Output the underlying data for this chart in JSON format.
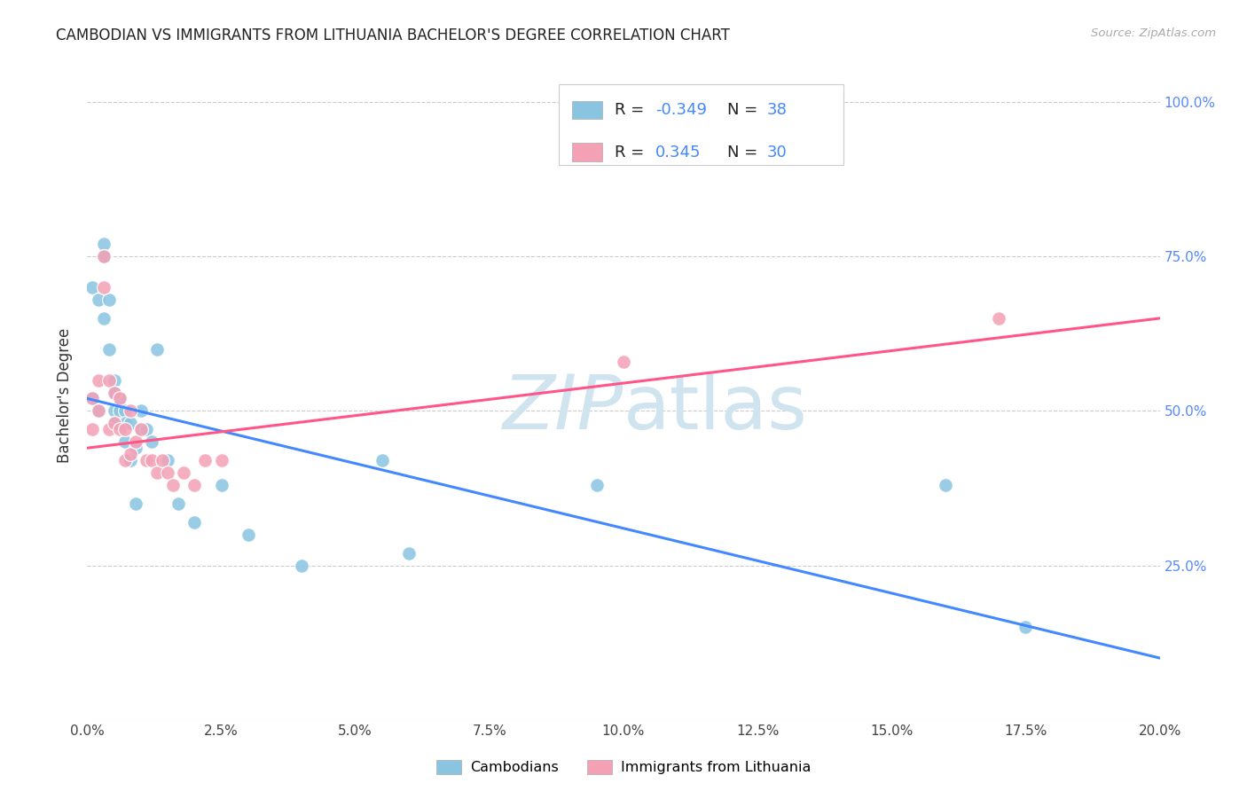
{
  "title": "CAMBODIAN VS IMMIGRANTS FROM LITHUANIA BACHELOR'S DEGREE CORRELATION CHART",
  "source": "Source: ZipAtlas.com",
  "ylabel": "Bachelor's Degree",
  "xlim": [
    0.0,
    0.2
  ],
  "ylim": [
    0.0,
    1.05
  ],
  "cambodian_scatter_color": "#89c4e1",
  "lithuania_scatter_color": "#f4a0b5",
  "blue_line_color": "#4488ff",
  "pink_line_color": "#ff5588",
  "watermark_color": "#d0e4f0",
  "cambodian_R": -0.349,
  "cambodian_N": 38,
  "lithuania_R": 0.345,
  "lithuania_N": 30,
  "cam_x": [
    0.001,
    0.001,
    0.002,
    0.002,
    0.003,
    0.003,
    0.003,
    0.004,
    0.004,
    0.005,
    0.005,
    0.005,
    0.005,
    0.006,
    0.006,
    0.007,
    0.007,
    0.007,
    0.008,
    0.008,
    0.009,
    0.009,
    0.01,
    0.01,
    0.011,
    0.012,
    0.013,
    0.015,
    0.017,
    0.02,
    0.025,
    0.03,
    0.04,
    0.055,
    0.06,
    0.095,
    0.16,
    0.175
  ],
  "cam_y": [
    0.52,
    0.7,
    0.68,
    0.5,
    0.77,
    0.75,
    0.65,
    0.68,
    0.6,
    0.55,
    0.53,
    0.5,
    0.48,
    0.52,
    0.5,
    0.5,
    0.48,
    0.45,
    0.48,
    0.42,
    0.44,
    0.35,
    0.5,
    0.47,
    0.47,
    0.45,
    0.6,
    0.42,
    0.35,
    0.32,
    0.38,
    0.3,
    0.25,
    0.42,
    0.27,
    0.38,
    0.38,
    0.15
  ],
  "lit_x": [
    0.001,
    0.001,
    0.002,
    0.002,
    0.003,
    0.003,
    0.004,
    0.004,
    0.005,
    0.005,
    0.006,
    0.006,
    0.007,
    0.007,
    0.008,
    0.008,
    0.009,
    0.01,
    0.011,
    0.012,
    0.013,
    0.014,
    0.015,
    0.016,
    0.018,
    0.02,
    0.022,
    0.025,
    0.1,
    0.17
  ],
  "lit_y": [
    0.52,
    0.47,
    0.55,
    0.5,
    0.75,
    0.7,
    0.55,
    0.47,
    0.53,
    0.48,
    0.52,
    0.47,
    0.47,
    0.42,
    0.5,
    0.43,
    0.45,
    0.47,
    0.42,
    0.42,
    0.4,
    0.42,
    0.4,
    0.38,
    0.4,
    0.38,
    0.42,
    0.42,
    0.58,
    0.65
  ],
  "blue_line_x": [
    0.0,
    0.2
  ],
  "blue_line_y": [
    0.52,
    0.1
  ],
  "pink_line_x": [
    0.0,
    0.2
  ],
  "pink_line_y": [
    0.44,
    0.65
  ],
  "background_color": "#ffffff",
  "grid_color": "#cccccc",
  "title_fontsize": 12,
  "axis_label_fontsize": 12,
  "legend_fontsize": 12,
  "tick_fontsize": 11,
  "right_tick_color": "#5588ff"
}
